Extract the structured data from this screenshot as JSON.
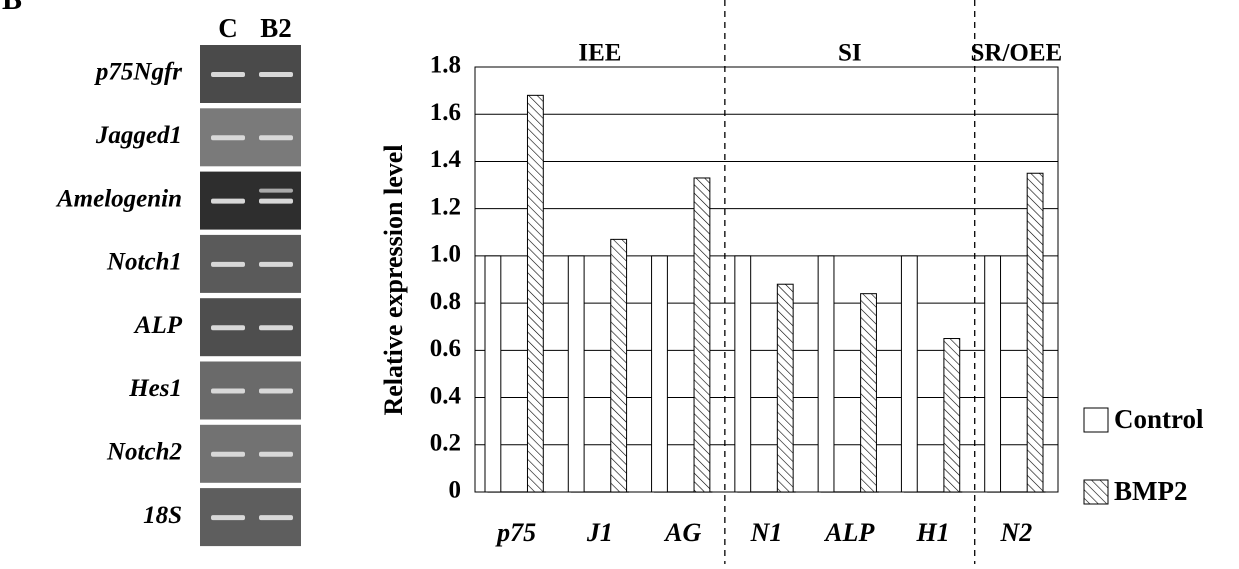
{
  "panel_label": "B",
  "gel": {
    "lanes": [
      "C",
      "B2"
    ],
    "genes": [
      "p75Ngfr",
      "Jagged1",
      "Amelogenin",
      "Notch1",
      "ALP",
      "Hes1",
      "Notch2",
      "18S"
    ]
  },
  "chart_data": {
    "type": "bar",
    "y_label": "Relative expression level",
    "categories": [
      "p75",
      "J1",
      "AG",
      "N1",
      "ALP",
      "H1",
      "N2"
    ],
    "groups": [
      {
        "label": "IEE",
        "span": 3
      },
      {
        "label": "SI",
        "span": 3
      },
      {
        "label": "SR/OEE",
        "span": 1
      }
    ],
    "series": [
      {
        "name": "Control",
        "color": "#ffffff",
        "hatch": false,
        "values": [
          1,
          1,
          1,
          1,
          1,
          1,
          1
        ]
      },
      {
        "name": "BMP2",
        "color": "#ffffff",
        "hatch": true,
        "values": [
          1.68,
          1.07,
          1.33,
          0.88,
          0.84,
          0.65,
          1.35
        ]
      }
    ],
    "ylim": [
      0,
      1.8
    ],
    "yticks": [
      0,
      0.2,
      0.4,
      0.6,
      0.8,
      {
        "value": 1,
        "label": "1.0"
      },
      1.2,
      1.4,
      1.6,
      1.8
    ],
    "grid": true,
    "legend": "right"
  }
}
